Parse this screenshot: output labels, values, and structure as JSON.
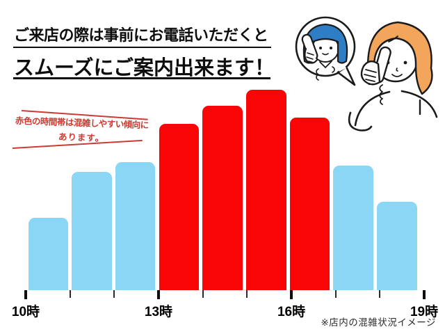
{
  "header": {
    "title_line1": "ご来店の際は事前にお電話いただくと",
    "title_line2": "スムーズにご案内出来ます！"
  },
  "annotation": {
    "text_line1": "赤色の時間帯は混雑しやすい傾向に",
    "text_line2": "あります。",
    "color": "#cc3b33"
  },
  "illustration": {
    "description": "customer on phone talking with shop clerk shown in speech bubble",
    "clerk_hair_color": "#2e7ec5",
    "customer_hair_color": "#f3a55c",
    "outline_color": "#1a1a1a"
  },
  "chart_data": {
    "type": "bar",
    "title": "",
    "xlabel": "",
    "ylabel": "",
    "x_tick_labels": [
      "10時",
      "13時",
      "16時",
      "19時"
    ],
    "hours": [
      "10-11",
      "11-12",
      "12-13",
      "13-14",
      "14-15",
      "15-16",
      "16-17",
      "17-18",
      "18-19"
    ],
    "values": [
      36,
      59,
      64,
      83,
      92,
      100,
      86,
      62,
      44
    ],
    "colors": [
      "blue",
      "blue",
      "blue",
      "red",
      "red",
      "red",
      "red",
      "blue",
      "blue"
    ],
    "bar_color_blue": "#8ad7f5",
    "bar_color_red": "#f90505",
    "ylim": [
      0,
      100
    ],
    "grid": false,
    "legend": false,
    "note": "red bars 13時-17時 indicate crowded hours"
  },
  "footnote": "※店内の混雑状況イメージ"
}
